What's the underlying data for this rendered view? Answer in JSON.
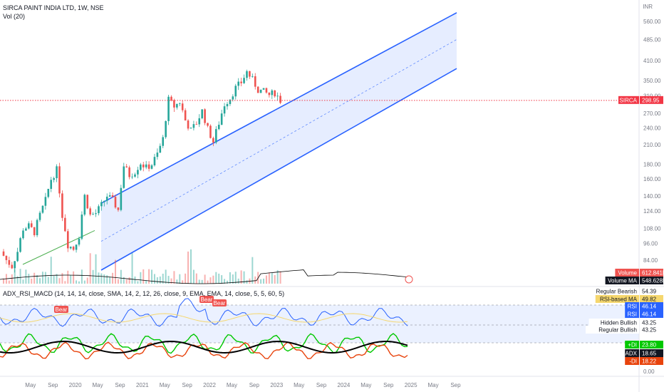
{
  "chart_title": "SIRCA PAINT INDIA LTD, 1W, NSE",
  "volume_title": "Vol (20)",
  "indicator_title": "ADX_RSI_MACD (14, 14, 14, close, SMA, 14, 2, 12, 26, close, 9, EMA, EMA, 14, close, 5, 5, 60, 5)",
  "currency": "INR",
  "colors": {
    "up": "#26a69a",
    "down": "#ef5350",
    "channel": "#2962ff",
    "channel_fill": "#dbe5ff",
    "volume_ma": "#000000",
    "uptrend": "#4caf50",
    "rsi": "#2962ff",
    "rsi_ma": "#f5d76e",
    "plus_di": "#00c800",
    "minus_di": "#e8430c",
    "adx": "#000000",
    "price_tag": "#f23645"
  },
  "chart_data": {
    "type": "candlestick",
    "symbol": "SIRCA",
    "timeframe": "1W",
    "exchange": "NSE",
    "x_tick_labels": [
      "May",
      "Sep",
      "2020",
      "May",
      "Sep",
      "2021",
      "May",
      "Sep",
      "2022",
      "May",
      "Sep",
      "2023",
      "May",
      "Sep",
      "2024",
      "May",
      "Sep",
      "2025",
      "May",
      "Sep"
    ],
    "y_axis": {
      "scale": "log",
      "ticks": [
        560,
        485,
        410,
        350,
        310,
        270,
        240,
        210,
        180,
        160,
        140,
        124,
        108,
        96,
        84
      ],
      "tick_labels": [
        "560.00",
        "485.00",
        "410.00",
        "350.00",
        "310.00",
        "270.00",
        "240.00",
        "210.00",
        "180.00",
        "160.00",
        "140.00",
        "124.00",
        "108.00",
        "96.00",
        "84.00"
      ]
    },
    "last_price": 298.95,
    "last_price_label": "298.95",
    "price_path": [
      [
        "2019-04",
        90
      ],
      [
        "2019-05",
        84
      ],
      [
        "2019-06",
        80
      ],
      [
        "2019-07",
        90
      ],
      [
        "2019-08",
        108
      ],
      [
        "2019-09",
        110
      ],
      [
        "2019-10",
        105
      ],
      [
        "2019-11",
        120
      ],
      [
        "2019-12",
        135
      ],
      [
        "2020-01",
        160
      ],
      [
        "2020-02",
        172
      ],
      [
        "2020-03",
        120
      ],
      [
        "2020-04",
        95
      ],
      [
        "2020-05",
        92
      ],
      [
        "2020-06",
        102
      ],
      [
        "2020-07",
        140
      ],
      [
        "2020-08",
        120
      ],
      [
        "2020-09",
        122
      ],
      [
        "2020-10",
        130
      ],
      [
        "2020-11",
        140
      ],
      [
        "2020-12",
        135
      ],
      [
        "2021-01",
        125
      ],
      [
        "2021-02",
        178
      ],
      [
        "2021-03",
        165
      ],
      [
        "2021-04",
        170
      ],
      [
        "2021-05",
        182
      ],
      [
        "2021-06",
        175
      ],
      [
        "2021-07",
        180
      ],
      [
        "2021-08",
        195
      ],
      [
        "2021-09",
        220
      ],
      [
        "2021-10",
        300
      ],
      [
        "2021-11",
        285
      ],
      [
        "2021-12",
        295
      ],
      [
        "2022-01",
        255
      ],
      [
        "2022-02",
        235
      ],
      [
        "2022-03",
        250
      ],
      [
        "2022-04",
        275
      ],
      [
        "2022-05",
        238
      ],
      [
        "2022-06",
        215
      ],
      [
        "2022-07",
        250
      ],
      [
        "2022-08",
        290
      ],
      [
        "2022-09",
        305
      ],
      [
        "2022-10",
        330
      ],
      [
        "2022-11",
        345
      ],
      [
        "2022-12",
        375
      ],
      [
        "2023-01",
        352
      ],
      [
        "2023-02",
        325
      ],
      [
        "2023-03",
        320
      ],
      [
        "2023-04",
        312
      ],
      [
        "2023-05",
        318
      ],
      [
        "2023-06",
        298.95
      ]
    ],
    "volume": {
      "label": "Volume",
      "value_label": "612.841K",
      "ma_label": "Volume MA",
      "ma_value_label": "548.628K"
    },
    "indicator": {
      "rows": [
        {
          "name": "Regular Bearish",
          "value": "54.39"
        },
        {
          "name": "RSI-based MA",
          "value": "49.82"
        },
        {
          "name": "RSI",
          "value": "46.14"
        },
        {
          "name": "RSI",
          "value": "46.14"
        },
        {
          "name": "Hidden Bullish",
          "value": "43.25"
        },
        {
          "name": "Regular Bullish",
          "value": "43.25"
        },
        {
          "name": "+DI",
          "value": "23.80"
        },
        {
          "name": "ADX",
          "value": "18.65"
        },
        {
          "name": "-DI",
          "value": "18.22"
        }
      ],
      "zero_label": "0.00",
      "bear_labels": [
        "Bear",
        "Bear",
        "Bear"
      ]
    }
  }
}
